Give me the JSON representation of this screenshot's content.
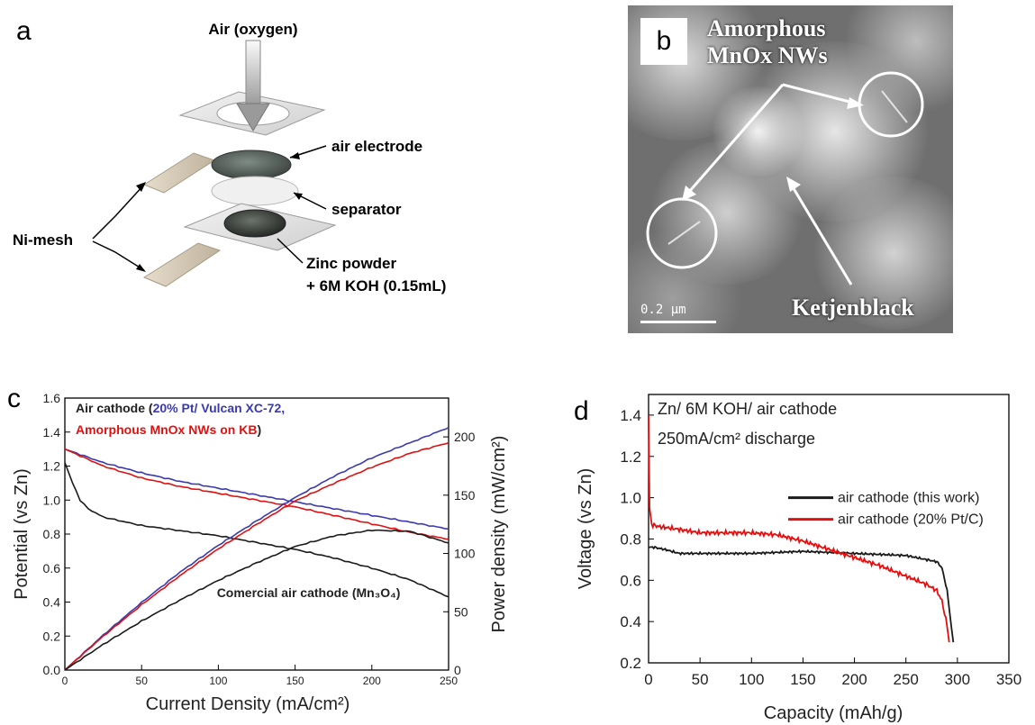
{
  "panels": {
    "a": "a",
    "b": "b",
    "c": "c",
    "d": "d"
  },
  "schematic": {
    "air_label": "Air (oxygen)",
    "air_electrode": "air electrode",
    "separator": "separator",
    "ni_mesh": "Ni-mesh",
    "zinc_line1": "Zinc powder",
    "zinc_line2": "+ 6M KOH (0.15mL)"
  },
  "tem": {
    "label_line1": "Amorphous",
    "label_line2": "MnOx NWs",
    "ketjen": "Ketjenblack",
    "scale": "0.2 μm"
  },
  "colors": {
    "black": "#1a1a1a",
    "blue": "#3a3ab0",
    "red": "#e01010"
  },
  "chart_data": [
    {
      "panel": "c",
      "type": "line",
      "xlabel": "Current Density (mA/cm²)",
      "ylabel": "Potential (vs Zn)",
      "y2label": "Power density (mW/cm²)",
      "xlim": [
        0,
        250
      ],
      "ylim": [
        0.0,
        1.6
      ],
      "y2lim": [
        0,
        233.3
      ],
      "xticks": [
        0,
        50,
        100,
        150,
        200,
        250
      ],
      "yticks": [
        0.0,
        0.2,
        0.4,
        0.6,
        0.8,
        1.0,
        1.2,
        1.4,
        1.6
      ],
      "y2ticks": [
        0,
        50,
        100,
        150,
        200
      ],
      "legend": {
        "prefix": "Air cathode (",
        "blue": "20% Pt/ Vulcan XC-72,",
        "red": "Amorphous MnOx NWs on KB",
        "suffix": ")",
        "black": "Comercial air cathode (Mn₃O₄)"
      },
      "series": [
        {
          "name": "20% Pt/ Vulcan XC-72",
          "color": "blue",
          "axis": "left",
          "x": [
            0,
            25,
            50,
            75,
            100,
            125,
            150,
            175,
            200,
            225,
            250
          ],
          "y": [
            1.3,
            1.22,
            1.16,
            1.11,
            1.07,
            1.03,
            0.99,
            0.95,
            0.91,
            0.87,
            0.83
          ]
        },
        {
          "name": "Amorphous MnOx NWs on KB",
          "color": "red",
          "axis": "left",
          "x": [
            0,
            25,
            50,
            75,
            100,
            125,
            150,
            175,
            200,
            225,
            250
          ],
          "y": [
            1.3,
            1.2,
            1.13,
            1.08,
            1.04,
            1.0,
            0.96,
            0.91,
            0.86,
            0.81,
            0.77
          ]
        },
        {
          "name": "Comercial air cathode (Mn3O4)",
          "color": "black",
          "axis": "left",
          "x": [
            0,
            5,
            10,
            15,
            25,
            50,
            75,
            100,
            125,
            150,
            175,
            200,
            225,
            250
          ],
          "y": [
            1.22,
            1.1,
            1.0,
            0.95,
            0.9,
            0.85,
            0.82,
            0.79,
            0.75,
            0.71,
            0.66,
            0.6,
            0.53,
            0.43
          ]
        },
        {
          "name": "20% Pt/ Vulcan XC-72 power",
          "color": "blue",
          "axis": "right",
          "x": [
            0,
            25,
            50,
            75,
            100,
            125,
            150,
            175,
            200,
            225,
            250
          ],
          "y": [
            0,
            30,
            58,
            84,
            107,
            128,
            148,
            166,
            182,
            195,
            208
          ]
        },
        {
          "name": "Amorphous MnOx NWs on KB power",
          "color": "red",
          "axis": "right",
          "x": [
            0,
            25,
            50,
            75,
            100,
            125,
            150,
            175,
            200,
            225,
            250
          ],
          "y": [
            0,
            29,
            56,
            81,
            104,
            125,
            145,
            160,
            174,
            186,
            195
          ]
        },
        {
          "name": "Comercial air cathode (Mn3O4) power",
          "color": "black",
          "axis": "right",
          "x": [
            0,
            25,
            50,
            75,
            100,
            125,
            150,
            175,
            200,
            225,
            250
          ],
          "y": [
            0,
            22,
            42,
            60,
            77,
            92,
            106,
            115,
            120,
            119,
            109
          ]
        }
      ]
    },
    {
      "panel": "d",
      "type": "line",
      "title_line1": "Zn/ 6M KOH/ air cathode",
      "title_line2": "250mA/cm² discharge",
      "xlabel": "Capacity (mAh/g)",
      "ylabel": "Voltage (vs Zn)",
      "xlim": [
        0,
        350
      ],
      "ylim": [
        0.2,
        1.5
      ],
      "xticks": [
        0,
        50,
        100,
        150,
        200,
        250,
        300,
        350
      ],
      "yticks": [
        0.2,
        0.4,
        0.6,
        0.8,
        1.0,
        1.2,
        1.4
      ],
      "legend_position": "right",
      "series": [
        {
          "name": "air cathode (this work)",
          "color": "black",
          "x": [
            0,
            5,
            15,
            30,
            50,
            100,
            150,
            200,
            250,
            280,
            285,
            290,
            294,
            296
          ],
          "y": [
            0.76,
            0.76,
            0.75,
            0.73,
            0.73,
            0.73,
            0.74,
            0.73,
            0.72,
            0.69,
            0.66,
            0.55,
            0.38,
            0.3
          ]
        },
        {
          "name": "air cathode (20% Pt/C)",
          "color": "red",
          "x": [
            0,
            1,
            3,
            10,
            25,
            50,
            75,
            100,
            125,
            150,
            175,
            200,
            225,
            250,
            270,
            280,
            285,
            290,
            292
          ],
          "y": [
            1.4,
            0.95,
            0.87,
            0.86,
            0.85,
            0.83,
            0.83,
            0.83,
            0.82,
            0.79,
            0.75,
            0.71,
            0.67,
            0.62,
            0.58,
            0.55,
            0.5,
            0.38,
            0.3
          ]
        }
      ]
    }
  ]
}
